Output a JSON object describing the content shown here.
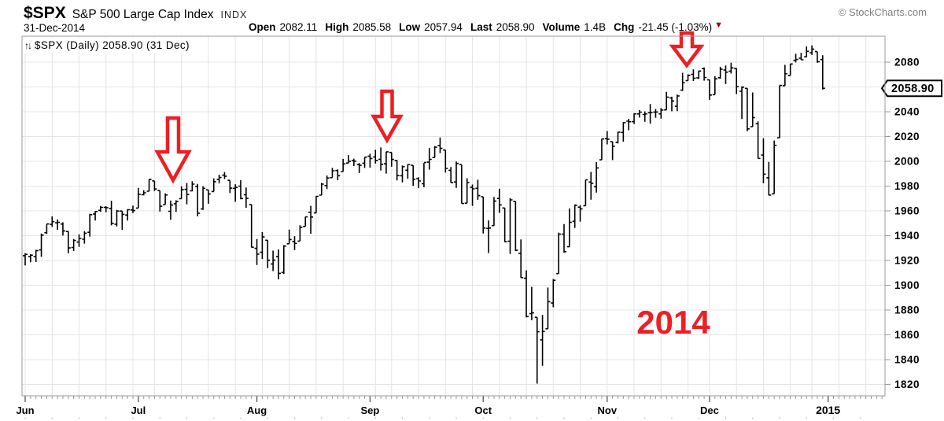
{
  "header": {
    "symbol": "$SPX",
    "title": "S&P 500 Large Cap Index",
    "exchange": "INDX",
    "credit": "© StockCharts.com",
    "date": "31-Dec-2014",
    "quote": [
      {
        "label": "Open",
        "value": "2082.11"
      },
      {
        "label": "High",
        "value": "2085.58"
      },
      {
        "label": "Low",
        "value": "2057.94"
      },
      {
        "label": "Last",
        "value": "2058.90"
      },
      {
        "label": "Volume",
        "value": "1.4B"
      },
      {
        "label": "Chg",
        "value": "-21.45 (-1.03%)"
      }
    ],
    "change_direction_glyph": "▼"
  },
  "legend": {
    "icon": "↑↓",
    "label": "$SPX (Daily) 2058.90 (31 Dec)"
  },
  "axis_price_tag": "2058.90",
  "chart_data": {
    "type": "ohlc-bar",
    "symbol": "$SPX",
    "timeframe": "Daily",
    "last_price": 2058.9,
    "ylim": [
      1811,
      2102
    ],
    "y_ticks": [
      1820,
      1840,
      1860,
      1880,
      1900,
      1920,
      1940,
      1960,
      1980,
      2000,
      2020,
      2040,
      2060,
      2080
    ],
    "y_tick_labels": [
      "1820",
      "1840",
      "1860",
      "1880",
      "1900",
      "1920",
      "1940",
      "1960",
      "1980",
      "2000",
      "2020",
      "2040",
      "",
      "2080"
    ],
    "x_axis_labels": [
      "Jun",
      "Jul",
      "Aug",
      "Sep",
      "Oct",
      "Nov",
      "Dec"
    ],
    "end_label": "2015",
    "grid": "vertical weekly, horizontal every 20 points",
    "legend_position": "top-left",
    "bars": [
      [
        "2014-06-02",
        1923.87,
        1925.88,
        1915.98,
        1924.97
      ],
      [
        "2014-06-03",
        1923.07,
        1925.07,
        1918.57,
        1924.24
      ],
      [
        "2014-06-04",
        1923.06,
        1928.63,
        1918.7,
        1927.88
      ],
      [
        "2014-06-05",
        1928.52,
        1941.74,
        1922.93,
        1940.46
      ],
      [
        "2014-06-06",
        1942.41,
        1949.44,
        1941.38,
        1949.44
      ],
      [
        "2014-06-09",
        1949.12,
        1955.55,
        1947.16,
        1951.27
      ],
      [
        "2014-06-10",
        1950.33,
        1953.17,
        1944.69,
        1950.79
      ],
      [
        "2014-06-11",
        1949.37,
        1950.8,
        1940.08,
        1943.89
      ],
      [
        "2014-06-12",
        1943.35,
        1943.74,
        1925.78,
        1930.11
      ],
      [
        "2014-06-13",
        1930.45,
        1937.3,
        1927.69,
        1936.16
      ],
      [
        "2014-06-16",
        1934.84,
        1941.14,
        1930.91,
        1937.78
      ],
      [
        "2014-06-17",
        1937.15,
        1943.69,
        1933.56,
        1941.99
      ],
      [
        "2014-06-18",
        1942.73,
        1957.74,
        1939.29,
        1956.98
      ],
      [
        "2014-06-19",
        1957.5,
        1959.87,
        1952.26,
        1959.48
      ],
      [
        "2014-06-20",
        1960.45,
        1963.91,
        1959.16,
        1962.87
      ],
      [
        "2014-06-23",
        1962.92,
        1963.74,
        1958.89,
        1962.61
      ],
      [
        "2014-06-24",
        1961.98,
        1968.17,
        1948.34,
        1949.98
      ],
      [
        "2014-06-25",
        1949.27,
        1960.77,
        1947.49,
        1959.89
      ],
      [
        "2014-06-26",
        1959.89,
        1959.89,
        1944.69,
        1957.22
      ],
      [
        "2014-06-27",
        1956.66,
        1961.47,
        1952.18,
        1960.96
      ],
      [
        "2014-06-30",
        1960.79,
        1964.24,
        1958.22,
        1960.23
      ],
      [
        "2014-07-01",
        1962.29,
        1978.58,
        1962.29,
        1973.32
      ],
      [
        "2014-07-02",
        1973.06,
        1976.67,
        1972.52,
        1974.62
      ],
      [
        "2014-07-03",
        1975.88,
        1985.59,
        1975.88,
        1985.44
      ],
      [
        "2014-07-07",
        1984.22,
        1984.22,
        1976.07,
        1977.65
      ],
      [
        "2014-07-08",
        1976.39,
        1976.39,
        1959.46,
        1963.71
      ],
      [
        "2014-07-09",
        1965.1,
        1974.15,
        1965.1,
        1972.83
      ],
      [
        "2014-07-10",
        1959.67,
        1968.31,
        1952.86,
        1964.68
      ],
      [
        "2014-07-11",
        1965.77,
        1968.58,
        1959.24,
        1967.57
      ],
      [
        "2014-07-14",
        1969.86,
        1979.85,
        1969.86,
        1977.1
      ],
      [
        "2014-07-15",
        1977.36,
        1982.52,
        1965.35,
        1973.28
      ],
      [
        "2014-07-16",
        1976.22,
        1983.94,
        1975.68,
        1981.57
      ],
      [
        "2014-07-17",
        1979.75,
        1981.8,
        1955.59,
        1958.12
      ],
      [
        "2014-07-18",
        1961.58,
        1979.91,
        1960.82,
        1978.22
      ],
      [
        "2014-07-21",
        1976.93,
        1976.93,
        1965.77,
        1973.63
      ],
      [
        "2014-07-22",
        1975.65,
        1986.24,
        1975.65,
        1983.53
      ],
      [
        "2014-07-23",
        1985.32,
        1989.23,
        1982.44,
        1987.01
      ],
      [
        "2014-07-24",
        1988.82,
        1991.39,
        1985.79,
        1987.98
      ],
      [
        "2014-07-25",
        1984.65,
        1984.65,
        1974.37,
        1978.34
      ],
      [
        "2014-07-28",
        1978.25,
        1981.52,
        1967.3,
        1978.91
      ],
      [
        "2014-07-29",
        1980.0,
        1984.85,
        1969.35,
        1969.95
      ],
      [
        "2014-07-30",
        1973.04,
        1978.89,
        1962.45,
        1970.07
      ],
      [
        "2014-07-31",
        1965.14,
        1965.14,
        1930.55,
        1930.67
      ],
      [
        "2014-08-01",
        1929.8,
        1937.35,
        1916.37,
        1925.15
      ],
      [
        "2014-08-04",
        1926.62,
        1942.92,
        1921.2,
        1938.99
      ],
      [
        "2014-08-05",
        1936.33,
        1936.33,
        1913.77,
        1920.21
      ],
      [
        "2014-08-06",
        1917.18,
        1927.91,
        1911.45,
        1920.24
      ],
      [
        "2014-08-07",
        1923.03,
        1928.89,
        1904.78,
        1909.57
      ],
      [
        "2014-08-08",
        1910.35,
        1932.38,
        1909.01,
        1931.59
      ],
      [
        "2014-08-11",
        1933.43,
        1944.9,
        1933.43,
        1936.92
      ],
      [
        "2014-08-12",
        1935.35,
        1939.65,
        1928.29,
        1933.75
      ],
      [
        "2014-08-13",
        1935.59,
        1948.41,
        1935.59,
        1946.72
      ],
      [
        "2014-08-14",
        1947.41,
        1955.23,
        1947.41,
        1955.18
      ],
      [
        "2014-08-15",
        1958.87,
        1964.04,
        1941.5,
        1955.06
      ],
      [
        "2014-08-18",
        1958.36,
        1971.99,
        1958.36,
        1971.74
      ],
      [
        "2014-08-19",
        1972.73,
        1982.57,
        1972.73,
        1981.6
      ],
      [
        "2014-08-20",
        1980.46,
        1988.57,
        1977.68,
        1986.51
      ],
      [
        "2014-08-21",
        1986.82,
        1994.76,
        1986.82,
        1992.37
      ],
      [
        "2014-08-22",
        1992.6,
        1993.54,
        1984.76,
        1988.4
      ],
      [
        "2014-08-25",
        1991.74,
        2001.95,
        1991.74,
        1997.92
      ],
      [
        "2014-08-26",
        1998.59,
        2005.04,
        1998.59,
        2000.02
      ],
      [
        "2014-08-27",
        2000.54,
        2002.14,
        1996.2,
        2000.12
      ],
      [
        "2014-08-28",
        1997.42,
        1998.55,
        1990.52,
        1996.74
      ],
      [
        "2014-08-29",
        1998.45,
        2003.38,
        1994.65,
        2003.37
      ],
      [
        "2014-09-02",
        2004.07,
        2006.12,
        1994.85,
        2002.28
      ],
      [
        "2014-09-03",
        2003.57,
        2009.28,
        1998.14,
        2000.72
      ],
      [
        "2014-09-04",
        2001.67,
        2011.17,
        1992.54,
        1997.65
      ],
      [
        "2014-09-05",
        1998.0,
        2007.71,
        1990.1,
        2007.71
      ],
      [
        "2014-09-08",
        2007.17,
        2007.17,
        1995.6,
        2001.54
      ],
      [
        "2014-09-09",
        2000.73,
        2001.01,
        1984.61,
        1988.44
      ],
      [
        "2014-09-10",
        1988.41,
        1996.66,
        1982.99,
        1995.69
      ],
      [
        "2014-09-11",
        1992.85,
        1997.65,
        1985.93,
        1997.45
      ],
      [
        "2014-09-12",
        1996.74,
        1996.74,
        1980.26,
        1985.54
      ],
      [
        "2014-09-15",
        1986.04,
        1987.18,
        1978.48,
        1984.13
      ],
      [
        "2014-09-16",
        1981.93,
        1998.65,
        1979.06,
        1998.98
      ],
      [
        "2014-09-17",
        1999.3,
        2010.74,
        1993.29,
        2001.57
      ],
      [
        "2014-09-18",
        2003.07,
        2012.34,
        2003.07,
        2011.36
      ],
      [
        "2014-09-19",
        2012.74,
        2019.26,
        2006.59,
        2010.4
      ],
      [
        "2014-09-22",
        2009.08,
        2009.08,
        1991.01,
        1994.29
      ],
      [
        "2014-09-23",
        1992.78,
        1995.41,
        1982.77,
        1982.77
      ],
      [
        "2014-09-24",
        1983.34,
        1999.79,
        1978.63,
        1998.3
      ],
      [
        "2014-09-25",
        1997.32,
        1997.32,
        1965.99,
        1965.99
      ],
      [
        "2014-09-26",
        1966.22,
        1986.37,
        1966.22,
        1982.85
      ],
      [
        "2014-09-29",
        1978.96,
        1981.28,
        1964.04,
        1977.8
      ],
      [
        "2014-09-30",
        1978.21,
        1985.17,
        1968.96,
        1972.29
      ],
      [
        "2014-10-01",
        1971.44,
        1971.44,
        1941.72,
        1946.16
      ],
      [
        "2014-10-02",
        1945.83,
        1952.32,
        1926.03,
        1946.17
      ],
      [
        "2014-10-03",
        1948.12,
        1971.19,
        1948.12,
        1967.9
      ],
      [
        "2014-10-06",
        1970.01,
        1977.84,
        1958.43,
        1964.82
      ],
      [
        "2014-10-07",
        1962.36,
        1962.36,
        1934.87,
        1935.1
      ],
      [
        "2014-10-08",
        1935.55,
        1970.36,
        1925.25,
        1968.89
      ],
      [
        "2014-10-09",
        1967.68,
        1967.68,
        1927.56,
        1928.21
      ],
      [
        "2014-10-10",
        1925.63,
        1936.98,
        1906.05,
        1906.13
      ],
      [
        "2014-10-13",
        1905.65,
        1912.09,
        1874.14,
        1874.74
      ],
      [
        "2014-10-14",
        1877.11,
        1898.71,
        1871.79,
        1877.7
      ],
      [
        "2014-10-15",
        1874.18,
        1874.18,
        1820.66,
        1862.49
      ],
      [
        "2014-10-16",
        1855.95,
        1876.01,
        1835.02,
        1862.76
      ],
      [
        "2014-10-17",
        1864.91,
        1898.16,
        1864.91,
        1886.76
      ],
      [
        "2014-10-20",
        1885.62,
        1905.03,
        1882.3,
        1904.01
      ],
      [
        "2014-10-21",
        1909.38,
        1942.45,
        1909.38,
        1941.28
      ],
      [
        "2014-10-22",
        1941.29,
        1949.31,
        1926.33,
        1927.11
      ],
      [
        "2014-10-23",
        1931.02,
        1961.95,
        1931.02,
        1950.82
      ],
      [
        "2014-10-24",
        1951.59,
        1965.27,
        1946.27,
        1964.58
      ],
      [
        "2014-10-27",
        1962.97,
        1964.64,
        1951.37,
        1961.63
      ],
      [
        "2014-10-28",
        1964.14,
        1985.05,
        1964.14,
        1985.05
      ],
      [
        "2014-10-29",
        1983.29,
        1991.4,
        1969.04,
        1982.3
      ],
      [
        "2014-10-30",
        1979.49,
        1999.4,
        1974.75,
        1994.65
      ],
      [
        "2014-10-31",
        2001.2,
        2018.19,
        2001.2,
        2018.05
      ],
      [
        "2014-11-03",
        2018.21,
        2024.46,
        2013.68,
        2017.81
      ],
      [
        "2014-11-04",
        2015.81,
        2015.98,
        2001.01,
        2012.1
      ],
      [
        "2014-11-05",
        2015.29,
        2023.77,
        2014.45,
        2023.57
      ],
      [
        "2014-11-06",
        2023.33,
        2031.61,
        2015.86,
        2031.21
      ],
      [
        "2014-11-07",
        2032.36,
        2034.26,
        2025.07,
        2031.92
      ],
      [
        "2014-11-10",
        2032.01,
        2038.7,
        2030.17,
        2038.26
      ],
      [
        "2014-11-11",
        2038.2,
        2041.28,
        2035.28,
        2039.68
      ],
      [
        "2014-11-12",
        2037.75,
        2040.33,
        2031.95,
        2038.25
      ],
      [
        "2014-11-13",
        2039.21,
        2046.18,
        2030.44,
        2039.33
      ],
      [
        "2014-11-14",
        2039.74,
        2042.22,
        2035.2,
        2039.82
      ],
      [
        "2014-11-17",
        2038.29,
        2043.07,
        2034.46,
        2041.32
      ],
      [
        "2014-11-18",
        2041.48,
        2056.08,
        2041.48,
        2051.8
      ],
      [
        "2014-11-19",
        2051.16,
        2052.14,
        2040.37,
        2048.72
      ],
      [
        "2014-11-20",
        2044.38,
        2053.84,
        2040.49,
        2052.75
      ],
      [
        "2014-11-21",
        2057.46,
        2071.46,
        2056.75,
        2063.5
      ],
      [
        "2014-11-24",
        2065.07,
        2070.17,
        2065.07,
        2069.41
      ],
      [
        "2014-11-25",
        2070.15,
        2074.21,
        2064.75,
        2067.03
      ],
      [
        "2014-11-26",
        2067.36,
        2073.29,
        2066.57,
        2072.83
      ],
      [
        "2014-11-28",
        2074.78,
        2075.76,
        2065.06,
        2067.56
      ],
      [
        "2014-12-01",
        2065.78,
        2065.78,
        2049.57,
        2053.44
      ],
      [
        "2014-12-02",
        2053.77,
        2068.77,
        2053.77,
        2066.55
      ],
      [
        "2014-12-03",
        2067.45,
        2076.28,
        2066.65,
        2074.33
      ],
      [
        "2014-12-04",
        2073.64,
        2077.34,
        2062.34,
        2071.92
      ],
      [
        "2014-12-05",
        2072.78,
        2079.47,
        2070.81,
        2075.37
      ],
      [
        "2014-12-08",
        2074.84,
        2075.03,
        2054.27,
        2060.31
      ],
      [
        "2014-12-09",
        2056.55,
        2060.6,
        2034.17,
        2059.82
      ],
      [
        "2014-12-10",
        2058.86,
        2058.86,
        2024.26,
        2026.14
      ],
      [
        "2014-12-11",
        2027.92,
        2055.53,
        2027.92,
        2035.33
      ],
      [
        "2014-12-12",
        2030.36,
        2032.25,
        2002.33,
        2002.33
      ],
      [
        "2014-12-15",
        2005.03,
        2018.69,
        1982.26,
        1989.63
      ],
      [
        "2014-12-16",
        1986.71,
        1999.47,
        1972.56,
        1972.74
      ],
      [
        "2014-12-17",
        1973.77,
        2016.75,
        1973.77,
        2012.89
      ],
      [
        "2014-12-18",
        2018.98,
        2061.23,
        2018.98,
        2061.23
      ],
      [
        "2014-12-19",
        2061.04,
        2077.85,
        2061.03,
        2070.65
      ],
      [
        "2014-12-22",
        2069.28,
        2078.76,
        2069.28,
        2078.54
      ],
      [
        "2014-12-23",
        2081.48,
        2086.73,
        2079.77,
        2082.17
      ],
      [
        "2014-12-24",
        2083.25,
        2087.56,
        2081.86,
        2081.88
      ],
      [
        "2014-12-26",
        2084.3,
        2092.7,
        2084.3,
        2088.77
      ],
      [
        "2014-12-29",
        2087.63,
        2093.55,
        2085.75,
        2090.57
      ],
      [
        "2014-12-30",
        2088.49,
        2088.49,
        2079.53,
        2080.35
      ],
      [
        "2014-12-31",
        2082.11,
        2085.58,
        2057.94,
        2058.9
      ]
    ],
    "annotations": [
      {
        "type": "arrow-down",
        "cx": 220,
        "y_top": 150,
        "y_tip": 229,
        "head_half_width": 20,
        "shaft_half_width": 7,
        "head_height": 36
      },
      {
        "type": "arrow-down",
        "cx": 492,
        "y_top": 116,
        "y_tip": 178,
        "head_half_width": 17,
        "shaft_half_width": 6.5,
        "head_height": 30
      },
      {
        "type": "arrow-down",
        "cx": 873,
        "y_top": 42,
        "y_tip": 83,
        "head_half_width": 18,
        "shaft_half_width": 7,
        "head_height": 24
      },
      {
        "type": "text",
        "text": "2014",
        "x": 856,
        "y": 424,
        "font_size": 42
      }
    ],
    "colors": {
      "bars": "#000000",
      "grid": "#e4e4e4",
      "axis": "#999999",
      "labels": "#000000",
      "annotation_red": "#ed1f24",
      "change_arrow": "#990000"
    }
  }
}
